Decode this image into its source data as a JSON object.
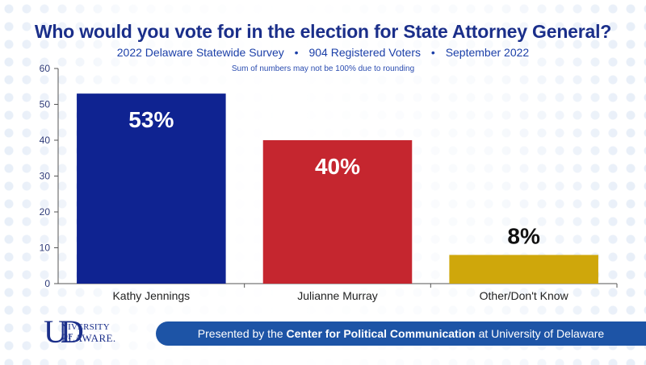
{
  "chart_data": {
    "type": "bar",
    "title": "Who would you vote for in the election for State Attorney General?",
    "subtitle": {
      "survey": "2022 Delaware Statewide Survey",
      "sample": "904 Registered Voters",
      "date": "September 2022",
      "separator": "•"
    },
    "note": "Sum of numbers may not be 100% due to rounding",
    "categories": [
      "Kathy Jennings",
      "Julianne Murray",
      "Other/Don't Know"
    ],
    "values": [
      53,
      40,
      8
    ],
    "data_labels": [
      "53%",
      "40%",
      "8%"
    ],
    "colors": [
      "#0f2391",
      "#c5262f",
      "#cfa70b"
    ],
    "yticks": [
      "0",
      "10",
      "20",
      "30",
      "40",
      "50",
      "60"
    ],
    "ylim": [
      0,
      60
    ],
    "grid": false,
    "legend": "none"
  },
  "footer": {
    "prefix": "Presented by the ",
    "bold": "Center for Political Communication",
    "suffix": " at University of Delaware"
  },
  "logo": {
    "monogram": "UD",
    "line1": "NIVERSITY OF",
    "line2": "ELAWARE."
  }
}
